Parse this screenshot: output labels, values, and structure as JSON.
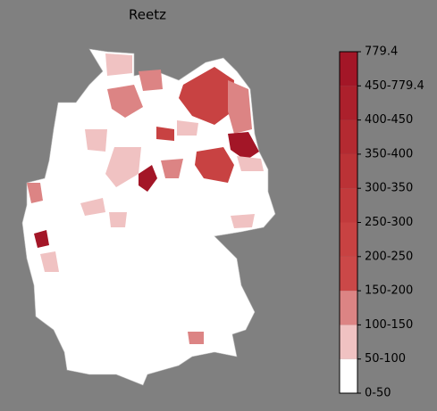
{
  "chart_data": {
    "type": "choropleth",
    "title": "Reetz",
    "legend": {
      "labels": [
        "0-50",
        "50-100",
        "100-150",
        "150-200",
        "200-250",
        "250-300",
        "300-350",
        "350-400",
        "400-450",
        "450-779.4",
        "779.4"
      ],
      "colors": [
        "#ffffff",
        "#f0c2c2",
        "#dc8484",
        "#cb4848",
        "#c84242",
        "#c23a3c",
        "#bb3236",
        "#b42a31",
        "#ac202c",
        "#a31627"
      ]
    }
  }
}
